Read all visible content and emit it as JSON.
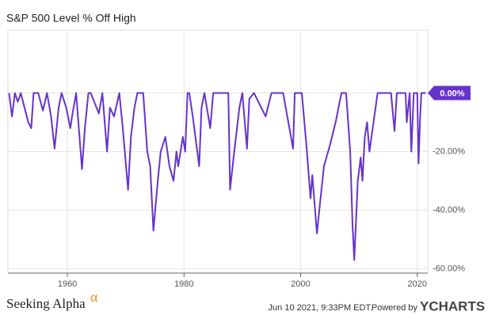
{
  "chart_data": {
    "type": "line",
    "title": "S&P 500 Level % Off High",
    "series": [
      {
        "name": "S&P 500 Level % Off High",
        "color": "#6633cc",
        "x": [
          1950,
          1950.5,
          1951,
          1951.5,
          1952,
          1953.3,
          1953.8,
          1954.2,
          1955,
          1955.8,
          1956.5,
          1957.2,
          1957.8,
          1958.5,
          1959,
          1959.8,
          1960.5,
          1960.8,
          1961.5,
          1962.5,
          1963,
          1963.6,
          1964,
          1965.4,
          1966,
          1966.8,
          1967.3,
          1968,
          1968.9,
          1969.5,
          1970.4,
          1970.9,
          1971.5,
          1972,
          1973,
          1973.7,
          1974.2,
          1974.75,
          1975.5,
          1976,
          1976.8,
          1977.5,
          1978.2,
          1978.7,
          1979,
          1979.8,
          1980.2,
          1980.6,
          1980.9,
          1981.5,
          1982.6,
          1983,
          1983.5,
          1984.5,
          1985,
          1986,
          1987.6,
          1987.9,
          1988.5,
          1989.5,
          1990,
          1990.8,
          1991.2,
          1992,
          1994,
          1995,
          1997,
          1998.7,
          1999,
          2000.2,
          2001,
          2001.7,
          2002,
          2002.8,
          2003.2,
          2004,
          2005,
          2006,
          2007,
          2007.8,
          2008.5,
          2008.9,
          2009.2,
          2009.8,
          2010.3,
          2010.6,
          2011,
          2011.4,
          2011.8,
          2012.5,
          2013.2,
          2014,
          2015.5,
          2016.1,
          2016.5,
          2018,
          2018.2,
          2018.7,
          2018.98,
          2019.4,
          2020,
          2020.22,
          2020.5,
          2020.7,
          2021,
          2021.45
        ],
        "values": [
          0,
          -8,
          0,
          -3,
          0,
          -10,
          -12,
          0,
          0,
          -6,
          0,
          -8,
          -19,
          -5,
          0,
          -5,
          -12,
          -8,
          0,
          -26,
          -12,
          0,
          0,
          -7,
          0,
          -20,
          -5,
          -8,
          0,
          -12,
          -33,
          -15,
          -5,
          0,
          0,
          -20,
          -25,
          -47,
          -30,
          -20,
          -15,
          -25,
          -30,
          -20,
          -25,
          -15,
          -20,
          0,
          0,
          -8,
          -25,
          -5,
          0,
          -12,
          0,
          0,
          0,
          -33,
          -22,
          -5,
          0,
          -19,
          -2,
          0,
          -8,
          0,
          0,
          -19,
          0,
          0,
          -18,
          -36,
          -28,
          -48,
          -40,
          -25,
          -18,
          -10,
          0,
          0,
          -20,
          -45,
          -57,
          -30,
          -22,
          -30,
          -15,
          -10,
          -20,
          -10,
          0,
          0,
          0,
          -13,
          0,
          0,
          -10,
          0,
          -20,
          0,
          0,
          -24,
          -8,
          0,
          0,
          0
        ]
      }
    ],
    "last_value": {
      "value": 0,
      "label": "0.00%"
    },
    "xlim": [
      1949.8,
      2021.8
    ],
    "xticks": [
      1960,
      1980,
      2000,
      2020
    ],
    "ylim": [
      -61.5,
      21.5
    ],
    "yticks": [
      {
        "value": 0,
        "label": "0.00%"
      },
      {
        "value": -20,
        "label": "-20.00%"
      },
      {
        "value": -40,
        "label": "-40.00%"
      },
      {
        "value": -60,
        "label": "-60.00%"
      }
    ],
    "grid": true
  },
  "footer": {
    "brand_left": "Seeking Alpha",
    "brand_symbol": "α",
    "timestamp": "Jun 10 2021, 9:33PM EDT.",
    "powered": "Powered by",
    "brand_right": "YCHARTS"
  }
}
